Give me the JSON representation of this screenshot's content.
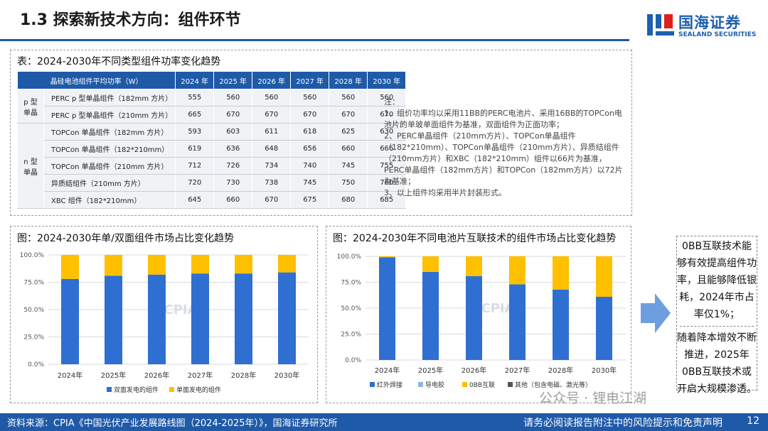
{
  "header": {
    "title": "1.3 探索新技术方向：组件环节"
  },
  "logo": {
    "cn": "国海证券",
    "en": "SEALAND SECURITIES"
  },
  "table": {
    "title": "表：2024-2030年不同类型组件功率变化趋势",
    "header_first": "晶硅电池组件平均功率（W）",
    "years": [
      "2024 年",
      "2025 年",
      "2026 年",
      "2027 年",
      "2028 年",
      "2030 年"
    ],
    "groups": [
      {
        "label": "p 型\n单晶",
        "rows": [
          {
            "module": "PERC p 型单晶组件（182mm 方片）",
            "values": [
              "555",
              "560",
              "560",
              "560",
              "560",
              "560"
            ]
          },
          {
            "module": "PERC p 型单晶组件（210mm 方片）",
            "values": [
              "665",
              "670",
              "670",
              "670",
              "670",
              "670"
            ]
          }
        ]
      },
      {
        "label": "n 型\n单晶",
        "rows": [
          {
            "module": "TOPCon 单晶组件（182mm 方片）",
            "values": [
              "593",
              "603",
              "611",
              "618",
              "625",
              "630"
            ]
          },
          {
            "module": "TOPCon 单晶组件（182*210mm）",
            "values": [
              "619",
              "636",
              "648",
              "656",
              "660",
              "666"
            ]
          },
          {
            "module": "TOPCon 单晶组件（210mm 方片）",
            "values": [
              "712",
              "726",
              "734",
              "740",
              "745",
              "755"
            ]
          },
          {
            "module": "异质结组件（210mm 方片）",
            "values": [
              "720",
              "730",
              "738",
              "745",
              "750",
              "760"
            ]
          },
          {
            "module": "XBC 组件（182*210mm）",
            "values": [
              "645",
              "660",
              "670",
              "675",
              "680",
              "685"
            ]
          }
        ]
      }
    ]
  },
  "notes": {
    "label": "注：",
    "lines": [
      "1、组价功率均以采用11BB的PERC电池片、采用16BB的TOPCon电池片的单玻单面组件为基准，双面组件为正面功率；",
      "2、PERC单晶组件（210mm方片）、TOPCon单晶组件（182*210mm）、TOPCon单晶组件（210mm方片）、异质结组件（210mm方片）和XBC（182*210mm）组件以66片为基准，PERC单晶组件（182mm方片）和TOPCon（182mm方片）以72片为基准；",
      "3、以上组件均采用半片封装形式。"
    ]
  },
  "chart_data": [
    {
      "type": "bar",
      "stacked": true,
      "title": "图：2024-2030年单/双面组件市场占比变化趋势",
      "categories": [
        "2024年",
        "2025年",
        "2026年",
        "2027年",
        "2028年",
        "2030年"
      ],
      "series": [
        {
          "name": "双面发电的组件",
          "color": "#2f6fd1",
          "values": [
            78,
            81,
            82,
            83,
            83,
            84
          ]
        },
        {
          "name": "单面发电的组件",
          "color": "#ffc000",
          "values": [
            22,
            19,
            18,
            17,
            17,
            16
          ]
        }
      ],
      "yticks": [
        "0.0%",
        "25.0%",
        "50.0%",
        "75.0%",
        "100.0%"
      ],
      "ylim": [
        0,
        100
      ],
      "legend": "bottom",
      "watermark": "CPIA"
    },
    {
      "type": "bar",
      "stacked": true,
      "title": "图：2024-2030年不同电池片互联技术的组件市场占比变化趋势",
      "categories": [
        "2024年",
        "2025年",
        "2026年",
        "2027年",
        "2028年",
        "2030年"
      ],
      "series": [
        {
          "name": "红外焊接",
          "color": "#2f6fd1",
          "values": [
            99,
            85,
            81,
            73,
            68,
            61
          ]
        },
        {
          "name": "导电胶",
          "color": "#8fb4e3",
          "values": [
            0,
            0,
            0,
            0,
            0,
            0
          ]
        },
        {
          "name": "0BB互联",
          "color": "#ffc000",
          "values": [
            1,
            15,
            19,
            27,
            32,
            39
          ]
        },
        {
          "name": "其他（包含电磁、激光等）",
          "color": "#555555",
          "values": [
            0,
            0,
            0,
            0,
            0,
            0
          ]
        }
      ],
      "yticks": [
        "0.0%",
        "25.0%",
        "50.0%",
        "75.0%",
        "100.0%"
      ],
      "ylim": [
        0,
        100
      ],
      "legend": "bottom",
      "watermark": "CPIA"
    }
  ],
  "sidebox": {
    "part1": "0BB互联技术能够有效提高组件功率，且能够降低银耗，2024年市占率仅1%；",
    "part2": "随着降本增效不断推进，2025年0BB互联技术或开启大规模渗透。"
  },
  "footer": {
    "source": "资料来源：CPIA《中国光伏产业发展路线图（2024-2025年）》，国海证券研究所",
    "disclaimer": "请务必阅读报告附注中的风险提示和免责声明",
    "page": "12"
  },
  "watermark": "公众号 · 锂电江湖",
  "colors": {
    "brand": "#1f5aa8",
    "bar_blue": "#2f6fd1",
    "bar_yellow": "#ffc000"
  }
}
